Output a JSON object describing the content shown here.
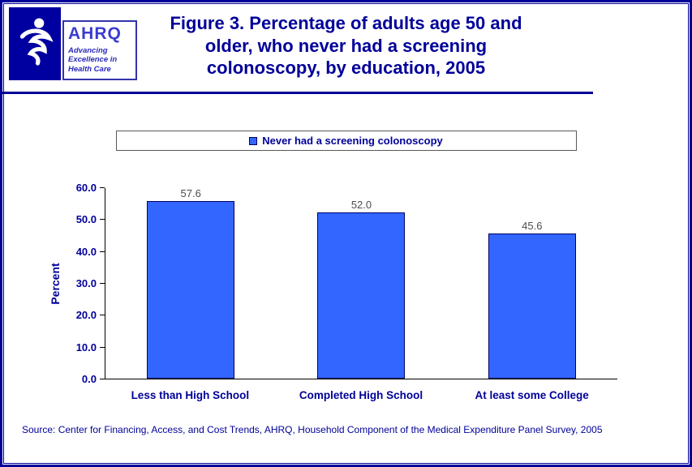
{
  "header": {
    "logo": {
      "hhs_icon": "hhs-eagle-seal",
      "acronym": "AHRQ",
      "tagline": "Advancing Excellence in Health Care"
    },
    "title": "Figure 3. Percentage of adults age 50 and older, who never had a screening colonoscopy, by education, 2005"
  },
  "chart_data": {
    "type": "bar",
    "title": "Figure 3. Percentage of adults age 50 and older, who never had a screening colonoscopy, by education, 2005",
    "series_name": "Never had a screening colonoscopy",
    "categories": [
      "Less than High School",
      "Completed High School",
      "At least some College"
    ],
    "values": [
      57.6,
      52.0,
      45.6
    ],
    "xlabel": "",
    "ylabel": "Percent",
    "ylim": [
      0,
      60
    ],
    "yticks": [
      0,
      10,
      20,
      30,
      40,
      50,
      60
    ],
    "tick_decimals": 1,
    "grid": false,
    "legend_position": "top",
    "bar_fill": "#3366FF",
    "bar_border": "#000066",
    "value_label_color": "#4D4D4D",
    "axis_text_color": "#000099"
  },
  "footer": {
    "source": "Source: Center for Financing, Access, and Cost Trends, AHRQ, Household Component of the Medical Expenditure Panel Survey, 2005"
  },
  "colors": {
    "title": "#000099",
    "border": "#000099",
    "rule": "#000099"
  }
}
